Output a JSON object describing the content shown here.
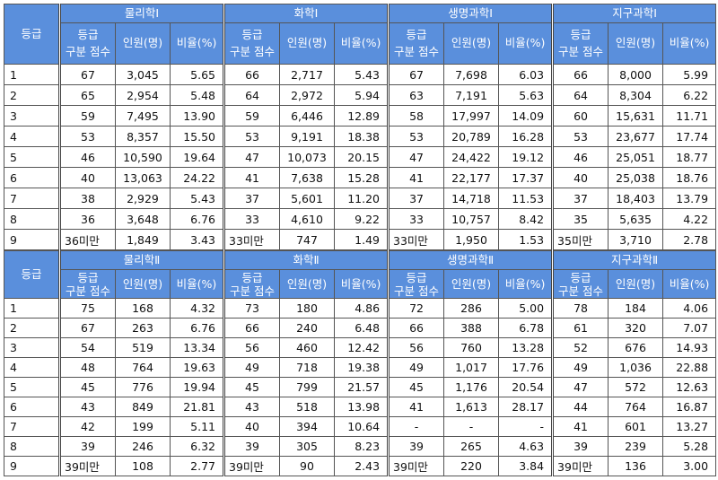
{
  "blocks": [
    {
      "grade": "등급",
      "subjects": [
        {
          "name": "물리학Ⅰ",
          "columns": [
            [
              "등급",
              "구분 점수"
            ],
            "인원(명)",
            "비율(%)"
          ]
        },
        {
          "name": "화학Ⅰ",
          "columns": [
            [
              "등급",
              "구분 점수"
            ],
            "인원(명)",
            "비율(%)"
          ]
        },
        {
          "name": "생명과학Ⅰ",
          "columns": [
            [
              "등급",
              "구분 점수"
            ],
            "인원(명)",
            "비율(%)"
          ]
        },
        {
          "name": "지구과학Ⅰ",
          "columns": [
            [
              "등급",
              "구분 점수"
            ],
            "인원(명)",
            "비율(%)"
          ]
        }
      ],
      "rows": [
        [
          "1",
          "67",
          "3,045",
          "5.65",
          "66",
          "2,717",
          "5.43",
          "67",
          "7,698",
          "6.03",
          "66",
          "8,000",
          "5.99"
        ],
        [
          "2",
          "65",
          "2,954",
          "5.48",
          "64",
          "2,972",
          "5.94",
          "63",
          "7,191",
          "5.63",
          "64",
          "8,304",
          "6.22"
        ],
        [
          "3",
          "59",
          "7,495",
          "13.90",
          "59",
          "6,446",
          "12.89",
          "58",
          "17,997",
          "14.09",
          "60",
          "15,631",
          "11.71"
        ],
        [
          "4",
          "53",
          "8,357",
          "15.50",
          "53",
          "9,191",
          "18.38",
          "53",
          "20,789",
          "16.28",
          "53",
          "23,677",
          "17.74"
        ],
        [
          "5",
          "46",
          "10,590",
          "19.64",
          "47",
          "10,073",
          "20.15",
          "47",
          "24,422",
          "19.12",
          "46",
          "25,051",
          "18.77"
        ],
        [
          "6",
          "40",
          "13,063",
          "24.22",
          "41",
          "7,638",
          "15.28",
          "41",
          "22,177",
          "17.37",
          "40",
          "25,038",
          "18.76"
        ],
        [
          "7",
          "38",
          "2,929",
          "5.43",
          "37",
          "5,601",
          "11.20",
          "37",
          "14,718",
          "11.53",
          "37",
          "18,403",
          "13.79"
        ],
        [
          "8",
          "36",
          "3,648",
          "6.76",
          "33",
          "4,610",
          "9.22",
          "33",
          "10,757",
          "8.42",
          "35",
          "5,635",
          "4.22"
        ],
        [
          "9",
          "36미만",
          "1,849",
          "3.43",
          "33미만",
          "747",
          "1.49",
          "33미만",
          "1,950",
          "1.53",
          "35미만",
          "3,710",
          "2.78"
        ]
      ]
    },
    {
      "grade": "등급",
      "subjects": [
        {
          "name": "물리학Ⅱ",
          "columns": [
            [
              "등급",
              "구분 점수"
            ],
            "인원(명)",
            "비율(%)"
          ]
        },
        {
          "name": "화학Ⅱ",
          "columns": [
            [
              "등급",
              "구분 점수"
            ],
            "인원(명)",
            "비율(%)"
          ]
        },
        {
          "name": "생명과학Ⅱ",
          "columns": [
            [
              "등급",
              "구분 점수"
            ],
            "인원(명)",
            "비율(%)"
          ]
        },
        {
          "name": "지구과학Ⅱ",
          "columns": [
            [
              "등급",
              "구분 점수"
            ],
            "인원(명)",
            "비율(%)"
          ]
        }
      ],
      "rows": [
        [
          "1",
          "75",
          "168",
          "4.32",
          "73",
          "180",
          "4.86",
          "72",
          "286",
          "5.00",
          "78",
          "184",
          "4.06"
        ],
        [
          "2",
          "67",
          "263",
          "6.76",
          "66",
          "240",
          "6.48",
          "66",
          "388",
          "6.78",
          "61",
          "320",
          "7.07"
        ],
        [
          "3",
          "54",
          "519",
          "13.34",
          "56",
          "460",
          "12.42",
          "56",
          "760",
          "13.28",
          "52",
          "676",
          "14.93"
        ],
        [
          "4",
          "48",
          "764",
          "19.63",
          "49",
          "718",
          "19.38",
          "49",
          "1,017",
          "17.76",
          "49",
          "1,036",
          "22.88"
        ],
        [
          "5",
          "45",
          "776",
          "19.94",
          "45",
          "799",
          "21.57",
          "45",
          "1,176",
          "20.54",
          "47",
          "572",
          "12.63"
        ],
        [
          "6",
          "43",
          "849",
          "21.81",
          "43",
          "518",
          "13.98",
          "41",
          "1,613",
          "28.17",
          "44",
          "764",
          "16.87"
        ],
        [
          "7",
          "42",
          "199",
          "5.11",
          "40",
          "394",
          "10.64",
          "-",
          "-",
          "-",
          "41",
          "601",
          "13.27"
        ],
        [
          "8",
          "39",
          "246",
          "6.32",
          "39",
          "305",
          "8.23",
          "39",
          "265",
          "4.63",
          "39",
          "239",
          "5.28"
        ],
        [
          "9",
          "39미만",
          "108",
          "2.77",
          "39미만",
          "90",
          "2.43",
          "39미만",
          "220",
          "3.84",
          "39미만",
          "136",
          "3.00"
        ]
      ]
    }
  ]
}
